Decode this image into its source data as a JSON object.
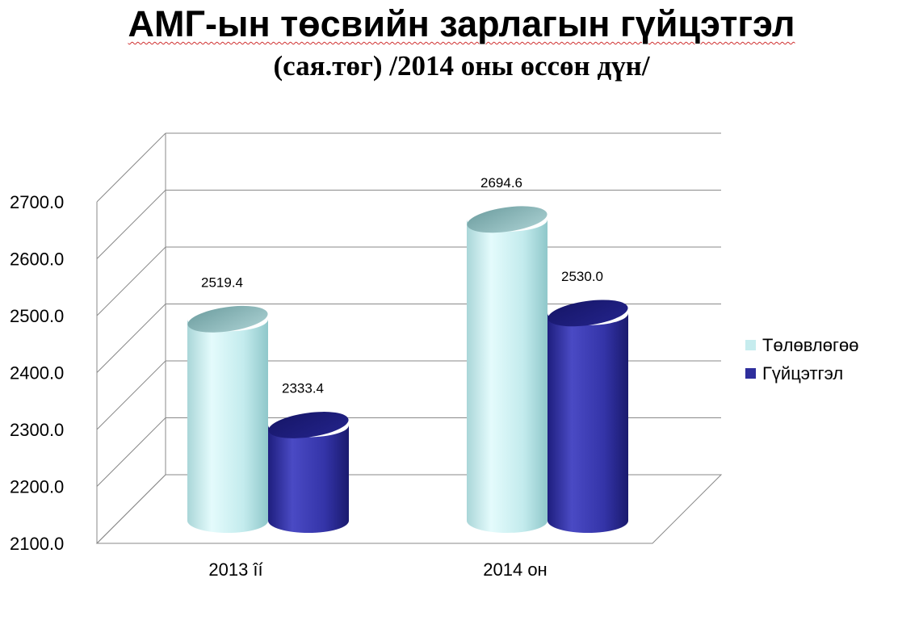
{
  "chart_data": {
    "type": "bar",
    "style": "3d-cylinder",
    "title": "АМГ-ын төсвийн зарлагын гүйцэтгэл",
    "subtitle": "(сая.төг) /2014 оны өссөн дүн/",
    "categories": [
      "2013 îí",
      "2014 он"
    ],
    "series": [
      {
        "name": "Төлөвлөгөө",
        "values": [
          2519.4,
          2694.6
        ],
        "color": "#c6ecee"
      },
      {
        "name": "Гүйцэтгэл",
        "values": [
          2333.4,
          2530.0
        ],
        "color": "#2e2e9c"
      }
    ],
    "ylim": [
      2100,
      2700
    ],
    "yticks": [
      "2100.0",
      "2200.0",
      "2300.0",
      "2400.0",
      "2500.0",
      "2600.0",
      "2700.0"
    ],
    "data_labels": [
      [
        "2519.4",
        "2694.6"
      ],
      [
        "2333.4",
        "2530.0"
      ]
    ],
    "grid": true,
    "legend_position": "right"
  }
}
